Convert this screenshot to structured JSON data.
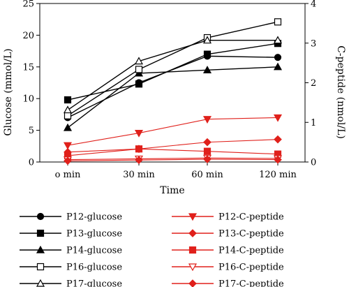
{
  "chart_data": {
    "type": "line",
    "title": "",
    "categories": [
      "o min",
      "30 min",
      "60 min",
      "120 min"
    ],
    "xlabel": "Time",
    "ylabel_left": "Glucose (mmol/L)",
    "ylabel_right": "C-peptide (nmol/L)",
    "ylim_left": [
      0,
      25
    ],
    "ylim_right": [
      0,
      4
    ],
    "yticks_left": [
      0,
      5,
      10,
      15,
      20,
      25
    ],
    "yticks_right": [
      0,
      1,
      2,
      3,
      4
    ],
    "grid": false,
    "legend_position": "bottom",
    "colors": {
      "glucose": "#000000",
      "cpeptide": "#e0201b"
    },
    "series": [
      {
        "name": "P12-glucose",
        "axis": "left",
        "marker": "circle-filled",
        "values": [
          7.0,
          12.5,
          16.7,
          16.5
        ]
      },
      {
        "name": "P13-glucose",
        "axis": "left",
        "marker": "square-filled",
        "values": [
          9.8,
          12.3,
          17.0,
          18.7
        ]
      },
      {
        "name": "P14-glucose",
        "axis": "left",
        "marker": "triangle-filled",
        "values": [
          5.4,
          14.0,
          14.5,
          15.0
        ]
      },
      {
        "name": "P16-glucose",
        "axis": "left",
        "marker": "square-open",
        "values": [
          7.3,
          14.6,
          19.6,
          22.1
        ]
      },
      {
        "name": "P17-glucose",
        "axis": "left",
        "marker": "triangle-open",
        "values": [
          8.2,
          15.9,
          19.2,
          19.2
        ]
      },
      {
        "name": "P12-C-peptide",
        "axis": "right",
        "marker": "triangle-down-filled",
        "values": [
          0.42,
          0.73,
          1.08,
          1.12
        ]
      },
      {
        "name": "P13-C-peptide",
        "axis": "right",
        "marker": "diamond-filled",
        "values": [
          0.25,
          0.33,
          0.5,
          0.57
        ]
      },
      {
        "name": "P14-C-peptide",
        "axis": "right",
        "marker": "square-filled",
        "values": [
          0.16,
          0.33,
          0.27,
          0.2
        ]
      },
      {
        "name": "P16-C-peptide",
        "axis": "right",
        "marker": "triangle-down-open",
        "values": [
          0.06,
          0.08,
          0.1,
          0.09
        ]
      },
      {
        "name": "P17-C-peptide",
        "axis": "right",
        "marker": "diamond-filled",
        "values": [
          0.03,
          0.05,
          0.07,
          0.06
        ]
      }
    ]
  }
}
